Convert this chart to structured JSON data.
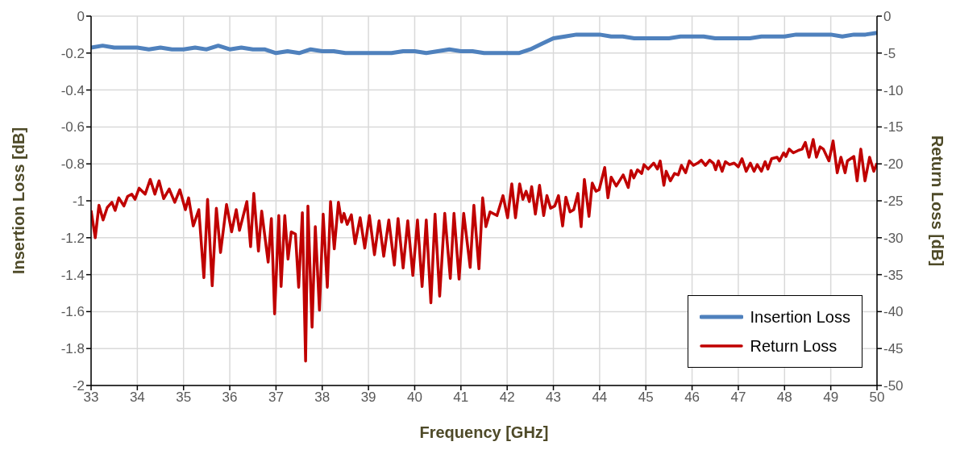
{
  "chart_data": {
    "type": "line",
    "xlabel": "Frequency [GHz]",
    "ylabel": "Insertion Loss [dB]",
    "y2label": "Return Loss [dB]",
    "xlim": [
      33,
      50
    ],
    "xticks": [
      33,
      34,
      35,
      36,
      37,
      38,
      39,
      40,
      41,
      42,
      43,
      44,
      45,
      46,
      47,
      48,
      49,
      50
    ],
    "ylim": [
      -2,
      0
    ],
    "yticks": [
      -2,
      -1.8,
      -1.6,
      -1.4,
      -1.2,
      -1,
      -0.8,
      -0.6,
      -0.4,
      -0.2,
      0
    ],
    "y2lim": [
      -50,
      0
    ],
    "y2ticks": [
      -50,
      -45,
      -40,
      -35,
      -30,
      -25,
      -20,
      -15,
      -10,
      -5,
      0
    ],
    "grid": true,
    "legend": "bottom right",
    "line_style": "solid",
    "series": [
      {
        "name": "Insertion Loss",
        "color": "#4f81bd",
        "x": [
          33,
          33.25,
          33.5,
          33.75,
          34,
          34.25,
          34.5,
          34.75,
          35,
          35.25,
          35.5,
          35.75,
          36,
          36.25,
          36.5,
          36.75,
          37,
          37.25,
          37.5,
          37.75,
          38,
          38.25,
          38.5,
          38.75,
          39,
          39.25,
          39.5,
          39.75,
          40,
          40.25,
          40.5,
          40.75,
          41,
          41.25,
          41.5,
          41.75,
          42,
          42.25,
          42.5,
          42.75,
          43,
          43.25,
          43.5,
          43.75,
          44,
          44.25,
          44.5,
          44.75,
          45,
          45.25,
          45.5,
          45.75,
          46,
          46.25,
          46.5,
          46.75,
          47,
          47.25,
          47.5,
          47.75,
          48,
          48.25,
          48.5,
          48.75,
          49,
          49.25,
          49.5,
          49.75,
          50
        ],
        "values": [
          -0.17,
          -0.16,
          -0.17,
          -0.17,
          -0.17,
          -0.18,
          -0.17,
          -0.18,
          -0.18,
          -0.17,
          -0.18,
          -0.16,
          -0.18,
          -0.17,
          -0.18,
          -0.18,
          -0.2,
          -0.19,
          -0.2,
          -0.18,
          -0.19,
          -0.19,
          -0.2,
          -0.2,
          -0.2,
          -0.2,
          -0.2,
          -0.19,
          -0.19,
          -0.2,
          -0.19,
          -0.18,
          -0.19,
          -0.19,
          -0.2,
          -0.2,
          -0.2,
          -0.2,
          -0.18,
          -0.15,
          -0.12,
          -0.11,
          -0.1,
          -0.1,
          -0.1,
          -0.11,
          -0.11,
          -0.12,
          -0.12,
          -0.12,
          -0.12,
          -0.11,
          -0.11,
          -0.11,
          -0.12,
          -0.12,
          -0.12,
          -0.12,
          -0.11,
          -0.11,
          -0.11,
          -0.1,
          -0.1,
          -0.1,
          -0.1,
          -0.11,
          -0.1,
          -0.1,
          -0.09
        ]
      },
      {
        "name": "Return Loss",
        "color": "#c00000",
        "axis": "y2",
        "x": [
          33.0,
          33.09,
          33.17,
          33.26,
          33.35,
          33.45,
          33.52,
          33.6,
          33.71,
          33.79,
          33.88,
          33.95,
          34.04,
          34.17,
          34.28,
          34.38,
          34.47,
          34.57,
          34.69,
          34.81,
          34.92,
          35.04,
          35.11,
          35.21,
          35.33,
          35.44,
          35.52,
          35.62,
          35.71,
          35.8,
          35.93,
          36.04,
          36.14,
          36.21,
          36.37,
          36.45,
          36.52,
          36.62,
          36.69,
          36.83,
          36.9,
          36.97,
          37.06,
          37.11,
          37.19,
          37.26,
          37.33,
          37.42,
          37.49,
          37.57,
          37.64,
          37.69,
          37.78,
          37.85,
          37.94,
          38.02,
          38.11,
          38.18,
          38.26,
          38.35,
          38.42,
          38.47,
          38.54,
          38.63,
          38.71,
          38.82,
          38.92,
          39.02,
          39.13,
          39.23,
          39.33,
          39.44,
          39.56,
          39.64,
          39.75,
          39.85,
          39.96,
          40.06,
          40.16,
          40.25,
          40.35,
          40.44,
          40.54,
          40.65,
          40.77,
          40.85,
          40.96,
          41.06,
          41.2,
          41.28,
          41.39,
          41.47,
          41.54,
          41.63,
          41.78,
          41.91,
          42.01,
          42.1,
          42.18,
          42.27,
          42.34,
          42.41,
          42.48,
          42.53,
          42.61,
          42.7,
          42.79,
          42.86,
          42.94,
          43.03,
          43.11,
          43.2,
          43.27,
          43.36,
          43.44,
          43.53,
          43.6,
          43.67,
          43.77,
          43.84,
          43.92,
          43.99,
          44.11,
          44.18,
          44.25,
          44.36,
          44.51,
          44.62,
          44.68,
          44.74,
          44.82,
          44.91,
          44.96,
          45.05,
          45.17,
          45.25,
          45.31,
          45.39,
          45.44,
          45.53,
          45.62,
          45.7,
          45.77,
          45.86,
          45.94,
          46.03,
          46.12,
          46.2,
          46.29,
          46.38,
          46.46,
          46.51,
          46.57,
          46.65,
          46.72,
          46.81,
          46.91,
          47.0,
          47.08,
          47.17,
          47.26,
          47.34,
          47.41,
          47.5,
          47.58,
          47.64,
          47.72,
          47.84,
          47.89,
          47.98,
          48.03,
          48.1,
          48.19,
          48.29,
          48.38,
          48.45,
          48.53,
          48.62,
          48.69,
          48.77,
          48.84,
          48.96,
          49.05,
          49.14,
          49.22,
          49.31,
          49.36,
          49.5,
          49.57,
          49.65,
          49.74,
          49.84,
          49.93,
          50.0
        ],
        "values": [
          -26.3,
          -30.0,
          -25.6,
          -27.6,
          -25.9,
          -25.2,
          -26.3,
          -24.6,
          -25.7,
          -24.4,
          -24.1,
          -24.8,
          -23.3,
          -24.1,
          -22.1,
          -24.1,
          -22.3,
          -24.7,
          -23.4,
          -25.2,
          -23.5,
          -26.2,
          -24.6,
          -28.4,
          -26.2,
          -35.4,
          -24.8,
          -36.5,
          -26.0,
          -32.0,
          -25.5,
          -29.2,
          -26.2,
          -29.0,
          -25.1,
          -31.2,
          -24.0,
          -31.8,
          -26.4,
          -33.3,
          -27.4,
          -40.3,
          -27.0,
          -36.6,
          -27.0,
          -32.9,
          -29.2,
          -29.5,
          -36.7,
          -26.6,
          -46.7,
          -25.7,
          -42.1,
          -28.5,
          -39.8,
          -26.8,
          -36.7,
          -25.1,
          -31.5,
          -25.2,
          -27.9,
          -26.7,
          -28.2,
          -26.9,
          -30.8,
          -27.3,
          -31.4,
          -27.0,
          -32.3,
          -27.7,
          -32.5,
          -27.6,
          -33.7,
          -27.4,
          -34.1,
          -27.7,
          -35.1,
          -27.6,
          -36.6,
          -27.6,
          -38.8,
          -26.8,
          -37.9,
          -26.7,
          -35.5,
          -26.7,
          -35.6,
          -26.7,
          -34.0,
          -25.6,
          -34.2,
          -24.6,
          -28.5,
          -26.5,
          -27.0,
          -24.3,
          -27.3,
          -22.7,
          -27.3,
          -22.7,
          -24.8,
          -23.7,
          -25.1,
          -23.1,
          -26.8,
          -22.9,
          -27.0,
          -24.3,
          -26.0,
          -25.7,
          -24.3,
          -28.4,
          -24.5,
          -26.5,
          -26.2,
          -24.0,
          -28.5,
          -22.1,
          -27.1,
          -22.6,
          -23.7,
          -23.5,
          -20.5,
          -24.6,
          -21.8,
          -23.0,
          -21.5,
          -23.2,
          -20.9,
          -21.9,
          -20.8,
          -21.3,
          -20.1,
          -20.7,
          -19.9,
          -20.7,
          -19.6,
          -22.9,
          -21.0,
          -22.3,
          -21.3,
          -21.5,
          -20.2,
          -21.2,
          -19.6,
          -20.2,
          -19.9,
          -19.5,
          -20.2,
          -19.5,
          -19.9,
          -20.8,
          -19.6,
          -21.0,
          -19.7,
          -20.1,
          -19.9,
          -20.4,
          -19.3,
          -21.0,
          -19.9,
          -21.0,
          -20.1,
          -21.0,
          -19.7,
          -20.7,
          -19.3,
          -19.1,
          -19.6,
          -18.5,
          -19.0,
          -18.0,
          -18.5,
          -18.2,
          -18.0,
          -17.1,
          -19.1,
          -16.7,
          -19.1,
          -17.7,
          -18.0,
          -19.6,
          -16.9,
          -21.2,
          -19.1,
          -21.2,
          -19.6,
          -19.0,
          -22.3,
          -18.0,
          -22.3,
          -19.1,
          -21.0,
          -19.9
        ]
      }
    ]
  }
}
